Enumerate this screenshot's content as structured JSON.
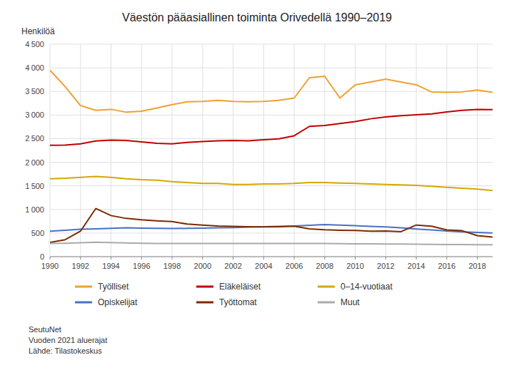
{
  "chart_data": {
    "type": "line",
    "title": "Väestön pääasiallinen toiminta Orivedellä 1990–2019",
    "y_label": "Henkilöä",
    "x": [
      1990,
      1991,
      1992,
      1993,
      1994,
      1995,
      1996,
      1997,
      1998,
      1999,
      2000,
      2001,
      2002,
      2003,
      2004,
      2005,
      2006,
      2007,
      2008,
      2009,
      2010,
      2011,
      2012,
      2013,
      2014,
      2015,
      2016,
      2017,
      2018,
      2019
    ],
    "series": [
      {
        "name": "Työlliset",
        "color": "#f0a030",
        "values": [
          3950,
          3600,
          3200,
          3100,
          3120,
          3060,
          3080,
          3150,
          3220,
          3280,
          3290,
          3310,
          3290,
          3280,
          3290,
          3310,
          3360,
          3790,
          3820,
          3360,
          3640,
          3700,
          3760,
          3700,
          3640,
          3490,
          3480,
          3490,
          3530,
          3480
        ]
      },
      {
        "name": "Eläkeläiset",
        "color": "#c00000",
        "values": [
          2360,
          2365,
          2390,
          2450,
          2470,
          2460,
          2430,
          2400,
          2390,
          2420,
          2440,
          2455,
          2460,
          2455,
          2475,
          2495,
          2560,
          2760,
          2780,
          2820,
          2860,
          2920,
          2960,
          2985,
          3005,
          3025,
          3065,
          3100,
          3120,
          3115
        ]
      },
      {
        "name": "0–14-vuotiaat",
        "color": "#d4a800",
        "values": [
          1650,
          1660,
          1680,
          1700,
          1680,
          1650,
          1630,
          1620,
          1590,
          1570,
          1550,
          1550,
          1530,
          1530,
          1540,
          1540,
          1550,
          1570,
          1570,
          1560,
          1550,
          1540,
          1530,
          1520,
          1510,
          1490,
          1470,
          1450,
          1430,
          1400
        ]
      },
      {
        "name": "Opiskelijat",
        "color": "#4472c4",
        "values": [
          540,
          560,
          580,
          590,
          600,
          610,
          605,
          600,
          595,
          600,
          605,
          610,
          615,
          625,
          635,
          640,
          650,
          665,
          680,
          670,
          655,
          640,
          630,
          610,
          585,
          565,
          545,
          525,
          512,
          502
        ]
      },
      {
        "name": "Työttomat",
        "color": "#7b2b00",
        "values": [
          300,
          360,
          540,
          1020,
          870,
          810,
          780,
          760,
          745,
          690,
          670,
          650,
          640,
          635,
          630,
          635,
          645,
          590,
          570,
          560,
          555,
          540,
          545,
          530,
          670,
          645,
          565,
          550,
          445,
          415
        ]
      },
      {
        "name": "Muut",
        "color": "#aaaaaa",
        "values": [
          280,
          285,
          295,
          305,
          298,
          290,
          282,
          278,
          278,
          278,
          278,
          278,
          278,
          278,
          278,
          278,
          278,
          278,
          278,
          276,
          273,
          270,
          268,
          268,
          264,
          260,
          258,
          255,
          253,
          252
        ]
      }
    ],
    "xlim": [
      1990,
      2019
    ],
    "xticks": [
      1990,
      1992,
      1994,
      1996,
      1998,
      2000,
      2002,
      2004,
      2006,
      2008,
      2010,
      2012,
      2014,
      2016,
      2018
    ],
    "ylim": [
      0,
      4500
    ],
    "yticks": [
      0,
      500,
      {
        "value": 1000,
        "label": "1 000"
      },
      {
        "value": 1500,
        "label": "1 500"
      },
      {
        "value": 2000,
        "label": "2 000"
      },
      {
        "value": 2500,
        "label": "2 500"
      },
      {
        "value": 3000,
        "label": "3 000"
      },
      {
        "value": 3500,
        "label": "3 500"
      },
      {
        "value": 4000,
        "label": "4 000"
      },
      {
        "value": 4500,
        "label": "4 500"
      }
    ],
    "grid": true,
    "legend": "bottom",
    "annotations": [
      "SeutuNet",
      "Vuoden 2021 aluerajat",
      "Lähde: Tilastokeskus"
    ]
  }
}
